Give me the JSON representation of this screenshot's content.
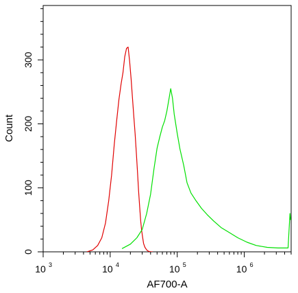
{
  "chart_data": {
    "type": "line",
    "xlabel": "AF700-A",
    "ylabel": "Count",
    "x_scale": "log",
    "xlim": [
      1000,
      5000000
    ],
    "ylim": [
      0,
      385
    ],
    "grid": false,
    "x_ticks": [
      {
        "base": "10",
        "exp": "3"
      },
      {
        "base": "10",
        "exp": "4"
      },
      {
        "base": "10",
        "exp": "5"
      },
      {
        "base": "10",
        "exp": "6"
      }
    ],
    "y_ticks": [
      0,
      100,
      200,
      300
    ],
    "series": [
      {
        "color": "#e00000",
        "x": [
          4500,
          5500,
          6500,
          7500,
          8500,
          9500,
          10500,
          11500,
          12500,
          13500,
          14500,
          15500,
          16500,
          17500,
          18500,
          19500,
          20500,
          21500,
          22500,
          23500,
          24500,
          25500,
          26500,
          27500,
          28500,
          29500,
          30500,
          31500,
          33000,
          35000,
          37000,
          40000,
          43000
        ],
        "y": [
          0,
          3,
          10,
          22,
          45,
          80,
          120,
          168,
          205,
          238,
          262,
          280,
          305,
          318,
          320,
          298,
          270,
          240,
          212,
          185,
          155,
          125,
          95,
          70,
          48,
          33,
          22,
          13,
          7,
          3,
          1,
          0,
          0
        ]
      },
      {
        "color": "#00e000",
        "x": [
          15000,
          20000,
          25000,
          30000,
          35000,
          40000,
          45000,
          50000,
          55000,
          60000,
          65000,
          70000,
          75000,
          80000,
          85000,
          90000,
          100000,
          110000,
          125000,
          140000,
          160000,
          190000,
          230000,
          280000,
          350000,
          450000,
          600000,
          800000,
          1100000,
          1500000,
          2200000,
          3200000,
          4500000,
          4800000,
          4900000
        ],
        "y": [
          5,
          12,
          22,
          35,
          60,
          90,
          130,
          162,
          180,
          195,
          205,
          220,
          238,
          255,
          240,
          215,
          185,
          160,
          135,
          108,
          92,
          80,
          68,
          58,
          48,
          38,
          30,
          22,
          15,
          10,
          7,
          6,
          6,
          60,
          50
        ]
      }
    ]
  }
}
